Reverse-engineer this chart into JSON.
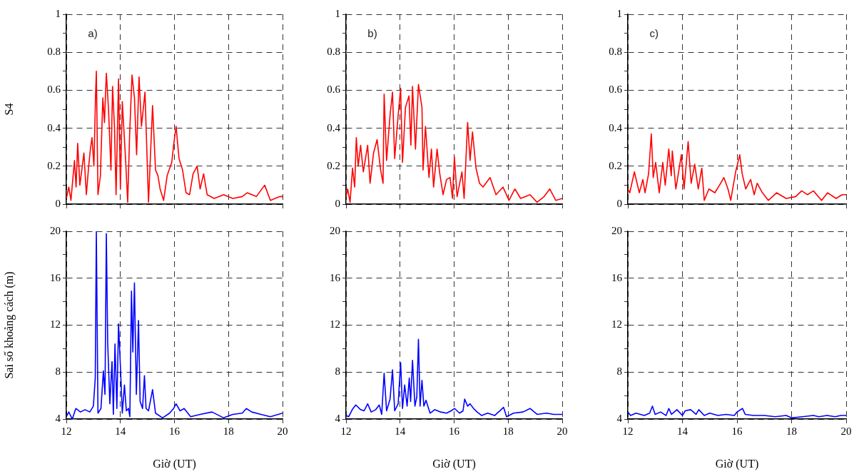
{
  "chart_data": [
    {
      "type": "line",
      "ylabel": "S4",
      "annotations": [
        "a)"
      ],
      "tick_labels": "y",
      "grid": true,
      "xlim": [
        12,
        20
      ],
      "xticks": [
        12,
        14,
        16,
        18,
        20
      ],
      "ylim": [
        0,
        1
      ],
      "yticks": [
        0,
        {
          "value": 0.1,
          "label": null
        },
        0.2,
        {
          "value": 0.3,
          "label": null
        },
        0.4,
        {
          "value": 0.5,
          "label": null
        },
        0.6,
        {
          "value": 0.7,
          "label": null
        },
        0.8,
        {
          "value": 0.9,
          "label": null
        },
        1
      ],
      "x": [
        12.0,
        12.09,
        12.17,
        12.3,
        12.36,
        12.42,
        12.5,
        12.59,
        12.65,
        12.74,
        12.82,
        12.89,
        12.95,
        13.02,
        13.08,
        13.11,
        13.17,
        13.26,
        13.35,
        13.41,
        13.48,
        13.56,
        13.65,
        13.71,
        13.78,
        13.84,
        13.93,
        14.0,
        14.07,
        14.19,
        14.27,
        14.34,
        14.43,
        14.52,
        14.6,
        14.69,
        14.78,
        14.91,
        15.04,
        15.19,
        15.3,
        15.39,
        15.47,
        15.6,
        15.73,
        15.9,
        15.97,
        16.06,
        16.17,
        16.3,
        16.43,
        16.56,
        16.69,
        16.84,
        16.95,
        17.08,
        17.21,
        17.47,
        17.82,
        18.16,
        18.51,
        18.69,
        19.03,
        19.34,
        19.55,
        19.9,
        20.0
      ],
      "series": [
        {
          "color": "#ff0000",
          "values": [
            0.03,
            0.09,
            0.02,
            0.23,
            0.09,
            0.32,
            0.1,
            0.2,
            0.27,
            0.05,
            0.19,
            0.29,
            0.35,
            0.2,
            0.57,
            0.7,
            0.05,
            0.15,
            0.56,
            0.43,
            0.69,
            0.5,
            0.18,
            0.62,
            0.41,
            0.05,
            0.66,
            0.08,
            0.54,
            0.24,
            0.01,
            0.36,
            0.68,
            0.56,
            0.26,
            0.67,
            0.41,
            0.59,
            0.01,
            0.52,
            0.18,
            0.15,
            0.08,
            0.02,
            0.15,
            0.22,
            0.31,
            0.41,
            0.24,
            0.18,
            0.06,
            0.05,
            0.16,
            0.2,
            0.08,
            0.16,
            0.05,
            0.03,
            0.05,
            0.03,
            0.04,
            0.06,
            0.04,
            0.1,
            0.02,
            0.04,
            0.04
          ]
        }
      ]
    },
    {
      "type": "line",
      "annotations": [
        "b)"
      ],
      "tick_labels": "y",
      "grid": true,
      "xlim": [
        12,
        20
      ],
      "xticks": [
        12,
        14,
        16,
        18,
        20
      ],
      "ylim": [
        0,
        1
      ],
      "yticks": [
        0,
        {
          "value": 0.1,
          "label": null
        },
        0.2,
        {
          "value": 0.3,
          "label": null
        },
        0.4,
        {
          "value": 0.5,
          "label": null
        },
        0.6,
        {
          "value": 0.7,
          "label": null
        },
        0.8,
        {
          "value": 0.9,
          "label": null
        },
        1
      ],
      "x": [
        12.0,
        12.06,
        12.15,
        12.24,
        12.32,
        12.38,
        12.45,
        12.54,
        12.64,
        12.8,
        12.89,
        13.02,
        13.15,
        13.28,
        13.37,
        13.41,
        13.5,
        13.63,
        13.72,
        13.8,
        13.93,
        14.02,
        14.09,
        14.2,
        14.33,
        14.4,
        14.46,
        14.57,
        14.68,
        14.81,
        14.85,
        14.94,
        15.07,
        15.16,
        15.24,
        15.37,
        15.46,
        15.59,
        15.72,
        15.85,
        15.94,
        16.01,
        16.11,
        16.29,
        16.37,
        16.5,
        16.59,
        16.68,
        16.81,
        16.94,
        17.07,
        17.33,
        17.55,
        17.81,
        18.03,
        18.25,
        18.46,
        18.81,
        19.07,
        19.33,
        19.54,
        19.76,
        20.0
      ],
      "series": [
        {
          "color": "#ff0000",
          "values": [
            0.04,
            0.08,
            0.01,
            0.19,
            0.09,
            0.35,
            0.2,
            0.31,
            0.17,
            0.31,
            0.11,
            0.27,
            0.34,
            0.18,
            0.11,
            0.58,
            0.23,
            0.47,
            0.59,
            0.24,
            0.47,
            0.61,
            0.22,
            0.51,
            0.57,
            0.31,
            0.62,
            0.29,
            0.63,
            0.51,
            0.18,
            0.41,
            0.14,
            0.29,
            0.09,
            0.29,
            0.17,
            0.05,
            0.13,
            0.14,
            0.03,
            0.25,
            0.04,
            0.17,
            0.03,
            0.43,
            0.23,
            0.38,
            0.19,
            0.11,
            0.09,
            0.14,
            0.05,
            0.09,
            0.02,
            0.08,
            0.03,
            0.05,
            0.01,
            0.04,
            0.08,
            0.02,
            0.03
          ]
        }
      ]
    },
    {
      "type": "line",
      "annotations": [
        "c)"
      ],
      "tick_labels": "y",
      "grid": true,
      "xlim": [
        12,
        20
      ],
      "xticks": [
        12,
        14,
        16,
        18,
        20
      ],
      "ylim": [
        0,
        1
      ],
      "yticks": [
        0,
        {
          "value": 0.1,
          "label": null
        },
        0.2,
        {
          "value": 0.3,
          "label": null
        },
        0.4,
        {
          "value": 0.5,
          "label": null
        },
        0.6,
        {
          "value": 0.7,
          "label": null
        },
        0.8,
        {
          "value": 0.9,
          "label": null
        },
        1
      ],
      "x": [
        12.0,
        12.07,
        12.24,
        12.42,
        12.55,
        12.63,
        12.76,
        12.86,
        12.93,
        13.02,
        13.15,
        13.28,
        13.37,
        13.5,
        13.59,
        13.63,
        13.76,
        13.96,
        14.06,
        14.21,
        14.32,
        14.45,
        14.58,
        14.71,
        14.8,
        14.97,
        15.19,
        15.36,
        15.52,
        15.67,
        15.77,
        15.95,
        16.1,
        16.19,
        16.32,
        16.5,
        16.63,
        16.74,
        16.93,
        17.15,
        17.45,
        17.8,
        18.15,
        18.37,
        18.58,
        18.8,
        19.1,
        19.32,
        19.63,
        19.85,
        20.0
      ],
      "series": [
        {
          "color": "#ff0000",
          "values": [
            0.08,
            0.06,
            0.17,
            0.06,
            0.13,
            0.06,
            0.16,
            0.37,
            0.14,
            0.22,
            0.06,
            0.22,
            0.1,
            0.29,
            0.15,
            0.28,
            0.08,
            0.26,
            0.08,
            0.33,
            0.11,
            0.21,
            0.08,
            0.19,
            0.02,
            0.08,
            0.06,
            0.1,
            0.14,
            0.08,
            0.02,
            0.17,
            0.26,
            0.16,
            0.08,
            0.13,
            0.05,
            0.11,
            0.06,
            0.02,
            0.06,
            0.03,
            0.04,
            0.07,
            0.05,
            0.07,
            0.02,
            0.06,
            0.03,
            0.05,
            0.05
          ]
        }
      ]
    },
    {
      "type": "line",
      "ylabel": "Sai số khoảng cách (m)",
      "xlabel": "Giờ (UT)",
      "grid": true,
      "xlim": [
        12,
        20
      ],
      "xticks": [
        12,
        14,
        16,
        18,
        20
      ],
      "ylim": [
        4,
        20
      ],
      "yticks": [
        4,
        {
          "value": 6,
          "label": null
        },
        8,
        {
          "value": 10,
          "label": null
        },
        12,
        {
          "value": 14,
          "label": null
        },
        16,
        {
          "value": 18,
          "label": null
        },
        20
      ],
      "x": [
        12.0,
        12.09,
        12.22,
        12.35,
        12.52,
        12.69,
        12.87,
        13.0,
        13.07,
        13.11,
        13.17,
        13.28,
        13.37,
        13.43,
        13.48,
        13.53,
        13.61,
        13.69,
        13.74,
        13.8,
        13.87,
        13.93,
        14.0,
        14.07,
        14.15,
        14.22,
        14.3,
        14.35,
        14.41,
        14.46,
        14.52,
        14.59,
        14.67,
        14.73,
        14.82,
        14.89,
        14.95,
        15.04,
        15.19,
        15.3,
        15.56,
        15.82,
        15.97,
        16.06,
        16.21,
        16.36,
        16.6,
        16.95,
        17.39,
        17.82,
        18.16,
        18.51,
        18.66,
        18.86,
        19.2,
        19.55,
        20.0
      ],
      "series": [
        {
          "color": "#0000ff",
          "values": [
            4.2,
            4.6,
            4.0,
            4.9,
            4.6,
            4.8,
            4.6,
            5.1,
            7.5,
            20,
            4.5,
            4.9,
            8.1,
            6.1,
            19.8,
            10.5,
            5.3,
            8.9,
            4.4,
            10.4,
            4.9,
            12.1,
            8.5,
            4.5,
            6.9,
            4.7,
            4.9,
            4.2,
            14.9,
            9.7,
            15.6,
            6.1,
            12.4,
            5.5,
            4.9,
            7.7,
            4.9,
            4.7,
            6.5,
            4.5,
            4.1,
            4.5,
            4.9,
            5.3,
            4.7,
            4.9,
            4.2,
            4.4,
            4.6,
            4.1,
            4.4,
            4.5,
            4.9,
            4.6,
            4.4,
            4.2,
            4.5
          ]
        }
      ]
    },
    {
      "type": "line",
      "xlabel": "Giờ (UT)",
      "grid": true,
      "xlim": [
        12,
        20
      ],
      "xticks": [
        12,
        14,
        16,
        18,
        20
      ],
      "ylim": [
        4,
        20
      ],
      "yticks": [
        4,
        {
          "value": 6,
          "label": null
        },
        8,
        {
          "value": 10,
          "label": null
        },
        12,
        {
          "value": 14,
          "label": null
        },
        16,
        {
          "value": 18,
          "label": null
        },
        20
      ],
      "x": [
        12.0,
        12.1,
        12.23,
        12.36,
        12.54,
        12.67,
        12.8,
        12.93,
        13.1,
        13.23,
        13.32,
        13.41,
        13.5,
        13.63,
        13.72,
        13.8,
        13.93,
        14.02,
        14.09,
        14.17,
        14.26,
        14.34,
        14.39,
        14.46,
        14.55,
        14.62,
        14.68,
        14.74,
        14.81,
        14.88,
        14.96,
        15.11,
        15.28,
        15.5,
        15.72,
        15.89,
        16.02,
        16.2,
        16.33,
        16.39,
        16.5,
        16.59,
        16.72,
        16.85,
        17.02,
        17.24,
        17.5,
        17.83,
        17.94,
        18.2,
        18.55,
        18.81,
        19.07,
        19.42,
        19.68,
        20.0
      ],
      "series": [
        {
          "color": "#0000ff",
          "values": [
            4.3,
            4.2,
            4.8,
            5.2,
            4.8,
            4.7,
            5.3,
            4.6,
            4.8,
            5.2,
            4.4,
            7.9,
            4.7,
            5.7,
            8.2,
            4.7,
            5.3,
            8.8,
            4.9,
            6.9,
            5.1,
            7.5,
            5.5,
            9.0,
            5.1,
            5.9,
            10.8,
            5.1,
            7.3,
            5.1,
            5.6,
            4.5,
            4.8,
            4.6,
            4.5,
            4.7,
            4.9,
            4.5,
            4.7,
            5.7,
            5.1,
            5.3,
            4.9,
            4.6,
            4.3,
            4.5,
            4.3,
            5.0,
            4.2,
            4.5,
            4.6,
            4.9,
            4.4,
            4.5,
            4.4,
            4.4
          ]
        }
      ]
    },
    {
      "type": "line",
      "xlabel": "Giờ (UT)",
      "grid": true,
      "xlim": [
        12,
        20
      ],
      "xticks": [
        12,
        14,
        16,
        18,
        20
      ],
      "ylim": [
        4,
        20
      ],
      "yticks": [
        4,
        {
          "value": 6,
          "label": null
        },
        8,
        {
          "value": 10,
          "label": null
        },
        12,
        {
          "value": 14,
          "label": null
        },
        16,
        {
          "value": 18,
          "label": null
        },
        20
      ],
      "x": [
        12.0,
        12.1,
        12.3,
        12.6,
        12.8,
        12.9,
        13.0,
        13.2,
        13.4,
        13.5,
        13.6,
        13.8,
        14.0,
        14.1,
        14.3,
        14.5,
        14.6,
        14.8,
        15.0,
        15.3,
        15.6,
        15.9,
        16.0,
        16.2,
        16.3,
        16.6,
        17.0,
        17.4,
        17.8,
        18.0,
        18.4,
        18.8,
        19.0,
        19.3,
        19.6,
        19.8,
        20.0
      ],
      "series": [
        {
          "color": "#0000ff",
          "values": [
            4.6,
            4.3,
            4.5,
            4.3,
            4.5,
            5.1,
            4.4,
            4.6,
            4.3,
            4.9,
            4.4,
            4.8,
            4.3,
            4.7,
            4.8,
            4.4,
            4.8,
            4.3,
            4.5,
            4.3,
            4.4,
            4.3,
            4.6,
            4.9,
            4.4,
            4.3,
            4.3,
            4.2,
            4.3,
            4.1,
            4.2,
            4.3,
            4.2,
            4.3,
            4.2,
            4.3,
            4.3
          ]
        }
      ]
    }
  ]
}
